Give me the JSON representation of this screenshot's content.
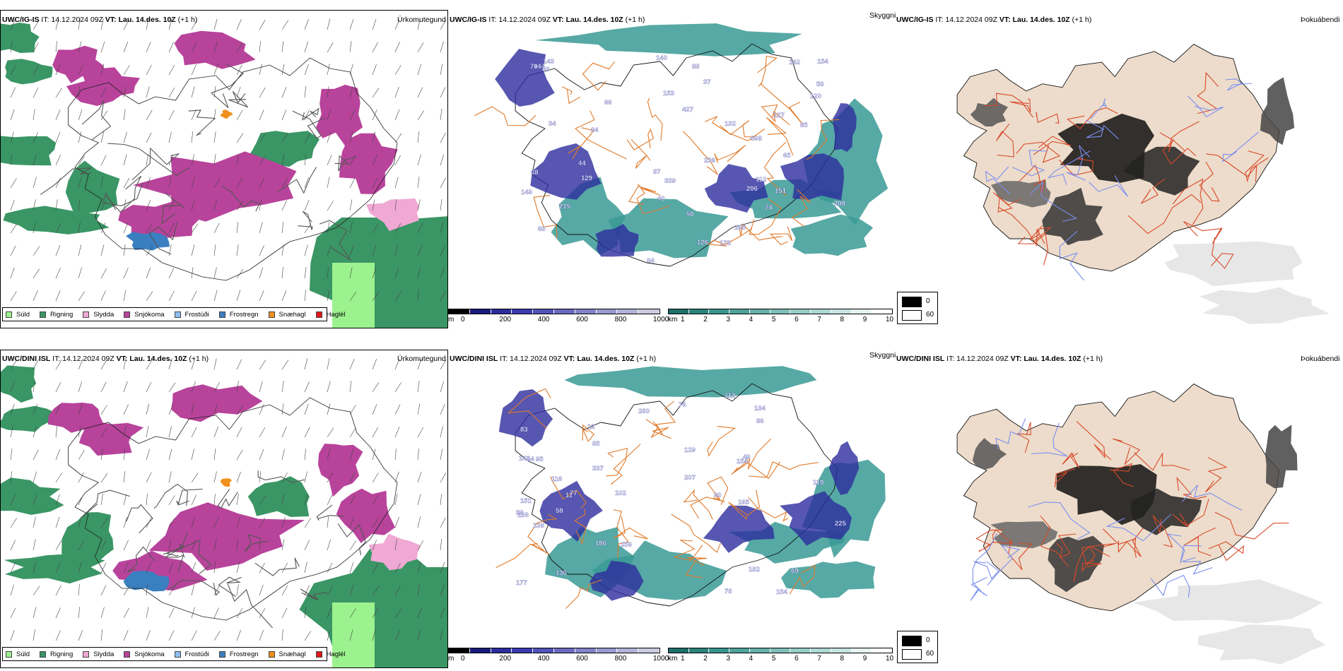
{
  "rows": [
    {
      "model": "UWC/IG-IS",
      "it": "IT: 14.12.2024 09Z",
      "vt": "VT: Lau. 14.des. 10Z",
      "offset": "(+1 h)",
      "precip_title": "Úrkomutegund",
      "vis_title": "Skyggni",
      "fog_title": "Þokuábendi",
      "vis_labels": [
        "143",
        "427",
        "140",
        "50",
        "85",
        "87",
        "68",
        "153",
        "84",
        "68",
        "37",
        "206",
        "127",
        "236",
        "165",
        "132",
        "151",
        "173",
        "154",
        "126",
        "120",
        "208",
        "129",
        "142",
        "215",
        "144",
        "74",
        "598",
        "339",
        "149",
        "68",
        "112",
        "58",
        "88",
        "84",
        "65",
        "40",
        "66",
        "70",
        "34",
        "44"
      ]
    },
    {
      "model": "UWC/DINI ISL",
      "it": "IT: 14.12.2024 09Z",
      "vt": "VT: Lau. 14.des. 10Z",
      "offset": "(+1 h)",
      "precip_title": "Úrkomutegund",
      "vis_title": "Skyggni",
      "fog_title": "Þokuábendi",
      "vis_labels": [
        "130",
        "102",
        "280",
        "138",
        "154",
        "126",
        "78",
        "11",
        "69",
        "12",
        "95",
        "85",
        "58",
        "86",
        "76",
        "165",
        "129",
        "225",
        "337",
        "134",
        "142",
        "116",
        "182",
        "119",
        "112",
        "154",
        "84",
        "77",
        "256",
        "49",
        "83",
        "90",
        "186",
        "207",
        "58",
        "177",
        "151"
      ]
    }
  ],
  "precip_legend": [
    {
      "label": "Súld",
      "color": "#9cf28e"
    },
    {
      "label": "Rigning",
      "color": "#3a9665"
    },
    {
      "label": "Slydda",
      "color": "#f0a8d4"
    },
    {
      "label": "Snjókoma",
      "color": "#b8439b"
    },
    {
      "label": "Frostúði",
      "color": "#8fbff0"
    },
    {
      "label": "Frostregn",
      "color": "#3a7fc0"
    },
    {
      "label": "Snæhagl",
      "color": "#f0901e"
    },
    {
      "label": "Haglél",
      "color": "#e01818"
    }
  ],
  "height_scale": {
    "unit": "m",
    "ticks": [
      "0",
      "200",
      "400",
      "600",
      "800",
      "1000"
    ]
  },
  "visibility_scale": {
    "unit": "km",
    "ticks": [
      "1",
      "2",
      "3",
      "4",
      "5",
      "6",
      "7",
      "8",
      "9",
      "10"
    ]
  },
  "fog_legend": [
    {
      "label": "0",
      "color": "#000000"
    },
    {
      "label": "60",
      "color": "#ffffff"
    }
  ],
  "colors": {
    "rain": "#3a9665",
    "snow": "#b8439b",
    "drizzle": "#9cf28e",
    "sleet": "#f0a8d4",
    "freezing": "#3a7fc0",
    "snow_pellets": "#f0901e",
    "vis_cloud": "#3a9a95",
    "vis_low": "#2d2d9e",
    "terrain": "#eddccb",
    "roads": "#e07a2a",
    "rivers": "#7a8ef0"
  }
}
